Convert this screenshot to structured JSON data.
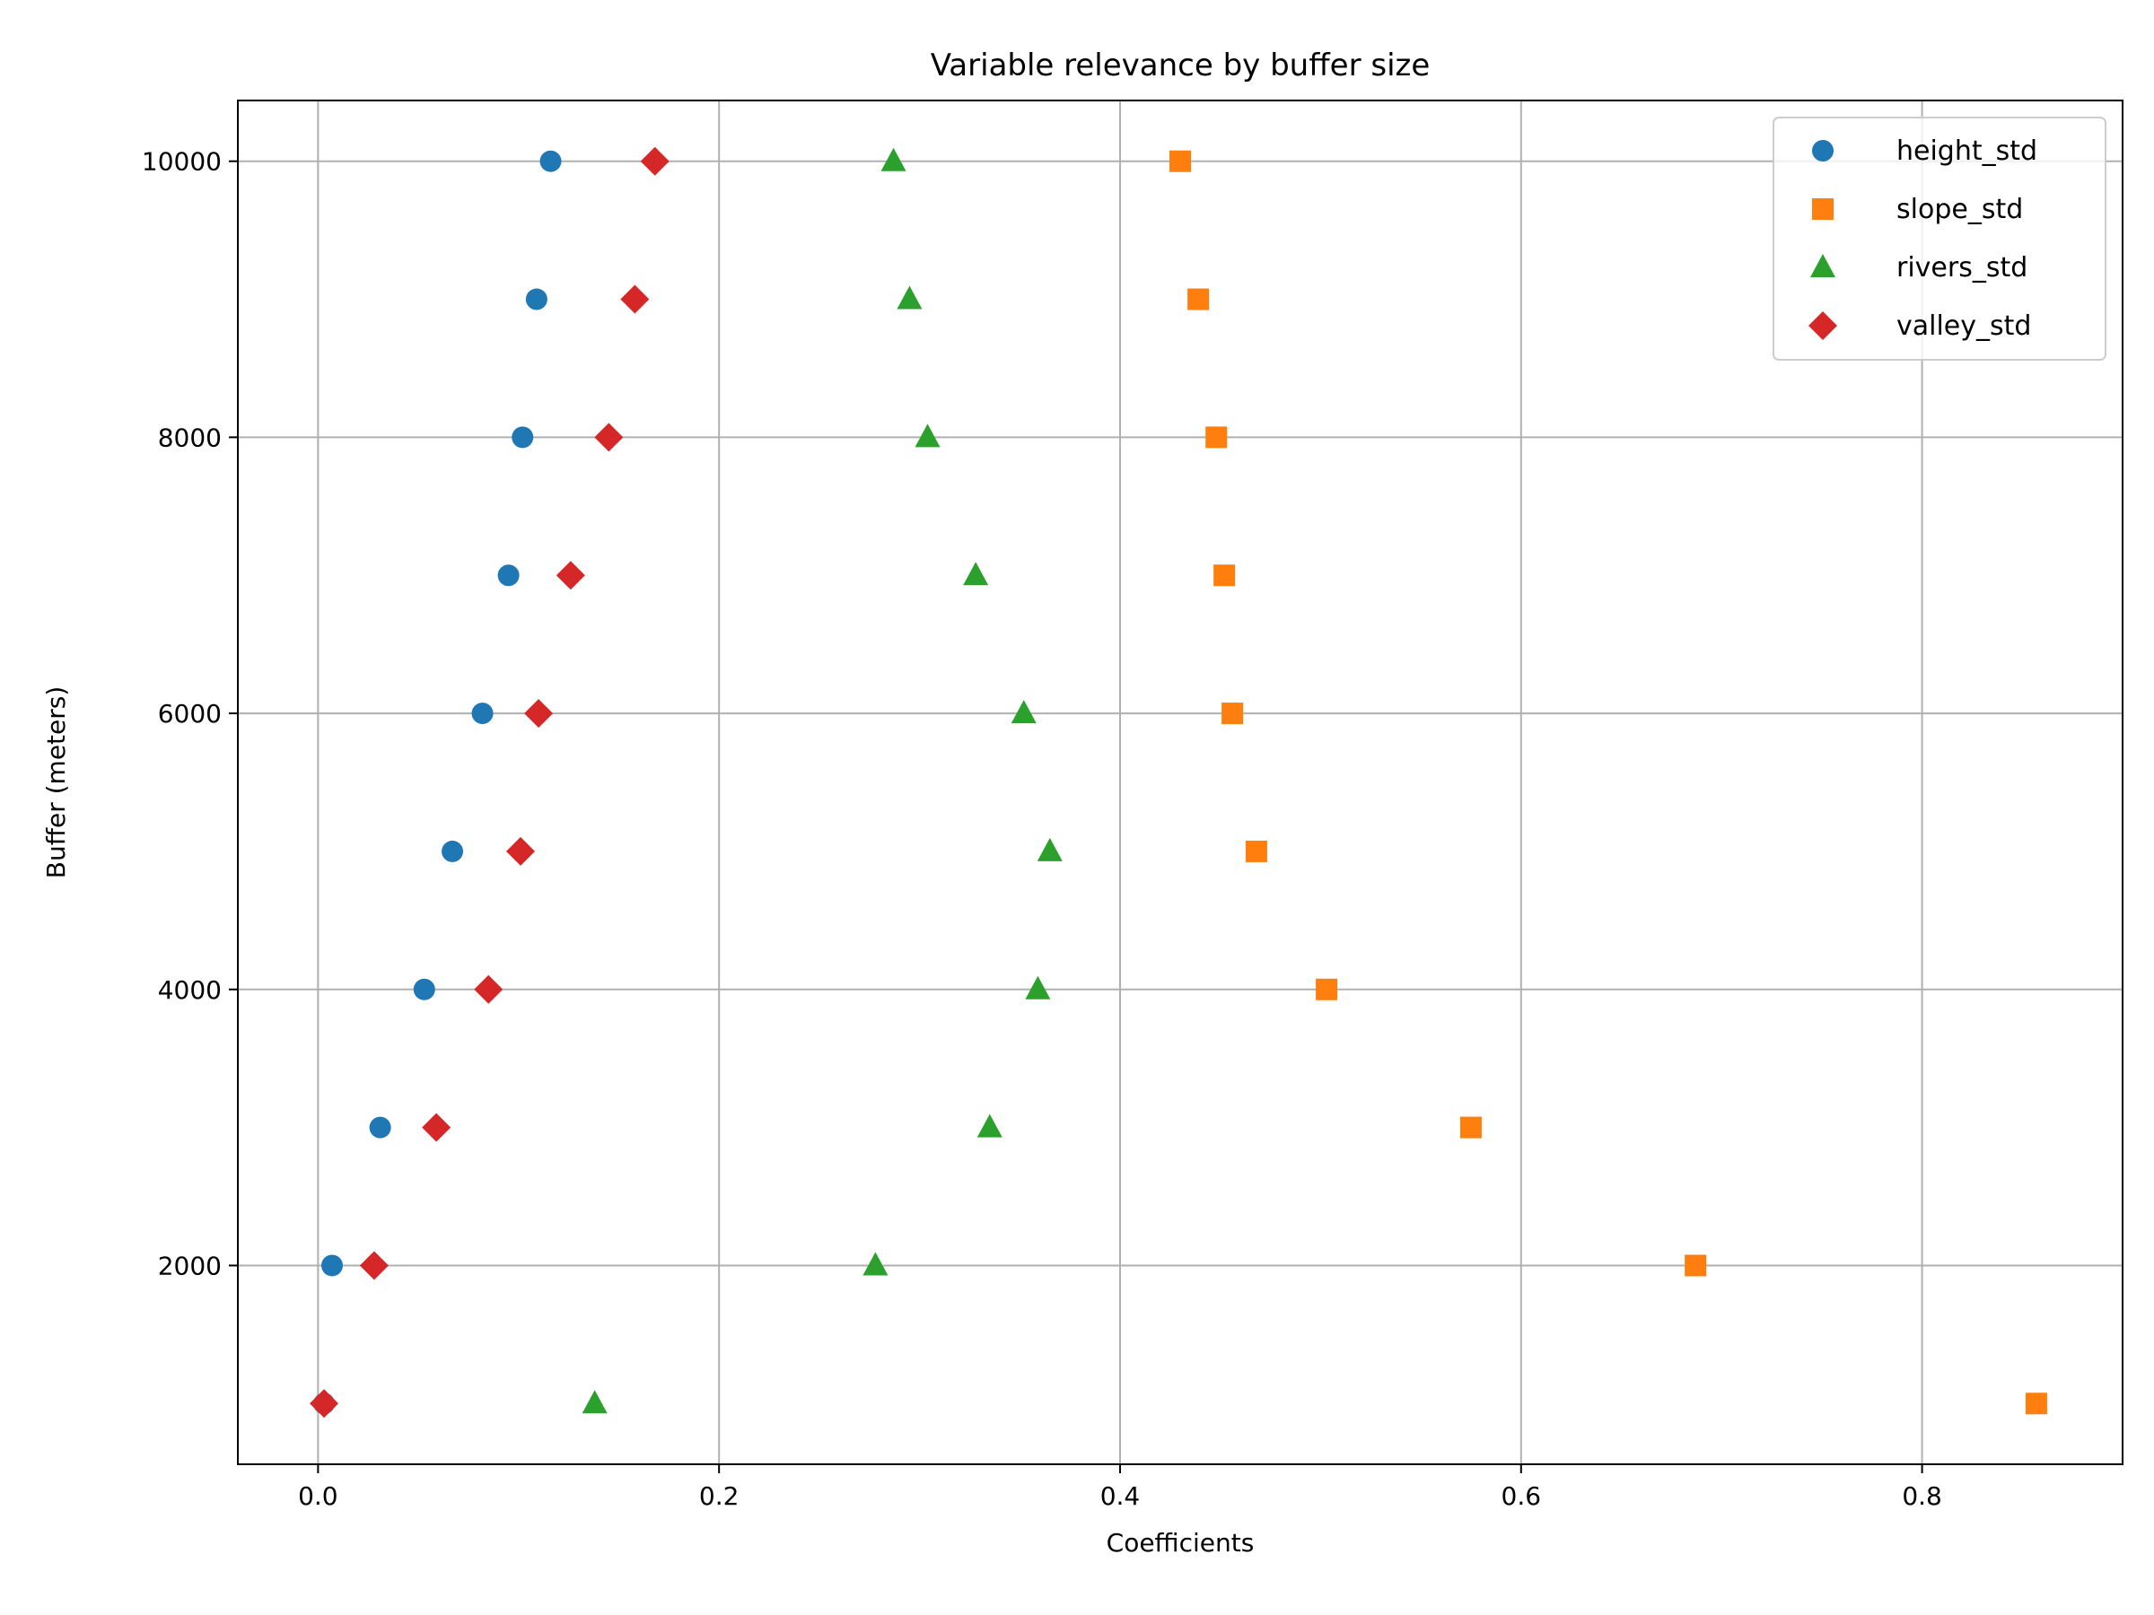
{
  "chart_data": {
    "type": "scatter",
    "title": "Variable relevance by buffer size",
    "xlabel": "Coefficients",
    "ylabel": "Buffer (meters)",
    "xlim": [
      -0.04,
      0.9
    ],
    "ylim": [
      560,
      10440
    ],
    "xticks": [
      0.0,
      0.2,
      0.4,
      0.6,
      0.8
    ],
    "xtick_labels": [
      "0.0",
      "0.2",
      "0.4",
      "0.6",
      "0.8"
    ],
    "yticks": [
      2000,
      4000,
      6000,
      8000,
      10000
    ],
    "ytick_labels": [
      "2000",
      "4000",
      "6000",
      "8000",
      "10000"
    ],
    "grid": true,
    "legend_position": "top-right",
    "y": [
      1000,
      2000,
      3000,
      4000,
      5000,
      6000,
      7000,
      8000,
      9000,
      10000
    ],
    "series": [
      {
        "name": "height_std",
        "marker": "circle",
        "color": "#1f77b4",
        "x": [
          0.003,
          0.007,
          0.031,
          0.053,
          0.067,
          0.082,
          0.095,
          0.102,
          0.109,
          0.116
        ]
      },
      {
        "name": "slope_std",
        "marker": "square",
        "color": "#ff7f0e",
        "x": [
          0.857,
          0.687,
          0.575,
          0.503,
          0.468,
          0.456,
          0.452,
          0.448,
          0.439,
          0.43
        ]
      },
      {
        "name": "rivers_std",
        "marker": "triangle",
        "color": "#2ca02c",
        "x": [
          0.138,
          0.278,
          0.335,
          0.359,
          0.365,
          0.352,
          0.328,
          0.304,
          0.295,
          0.287
        ]
      },
      {
        "name": "valley_std",
        "marker": "diamond",
        "color": "#d62728",
        "x": [
          0.003,
          0.028,
          0.059,
          0.085,
          0.101,
          0.11,
          0.126,
          0.145,
          0.158,
          0.168
        ]
      }
    ]
  }
}
